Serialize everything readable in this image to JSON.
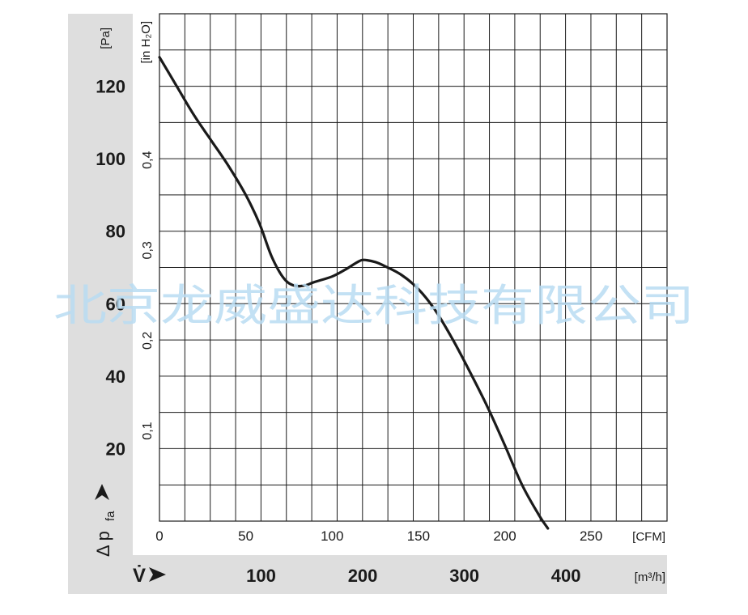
{
  "watermark": "北京龙威盛达科技有限公司",
  "colors": {
    "band": "#dedede",
    "line": "#1a1a1a",
    "watermark": "#b9dcf3"
  },
  "chart_data": {
    "type": "line",
    "title": "",
    "xlabel": "V̇",
    "ylabel": "Δ p",
    "ylabel_subscript": "fa",
    "x_unit": "[CFM]",
    "x_unit_secondary": "[m³/h]",
    "y_unit": "[Pa]",
    "y_unit_secondary": "[in H₂O]",
    "xlim": [
      0,
      294
    ],
    "ylim": [
      0,
      140
    ],
    "grid": true,
    "x_ticks": [
      "0",
      "50",
      "100",
      "150",
      "200",
      "250"
    ],
    "x_ticks_secondary": [
      "100",
      "200",
      "300",
      "400"
    ],
    "y_ticks": [
      "20",
      "40",
      "60",
      "80",
      "100",
      "120"
    ],
    "y_ticks_secondary": [
      "0,1",
      "0,2",
      "0,3",
      "0,4"
    ],
    "series": [
      {
        "x": [
          0,
          10,
          20,
          30,
          40,
          50,
          58,
          65,
          72,
          78,
          84,
          90,
          100,
          108,
          113,
          117,
          120,
          125,
          130,
          140,
          150,
          160,
          170,
          180,
          190,
          200,
          210,
          220,
          225
        ],
        "y": [
          128,
          120,
          112,
          105,
          98,
          90,
          82,
          73,
          67,
          65,
          65,
          66,
          67.5,
          69.5,
          71,
          72,
          72,
          71.5,
          70.5,
          68,
          64,
          58,
          50,
          41,
          31.5,
          21,
          10,
          1.5,
          -2
        ]
      }
    ]
  }
}
